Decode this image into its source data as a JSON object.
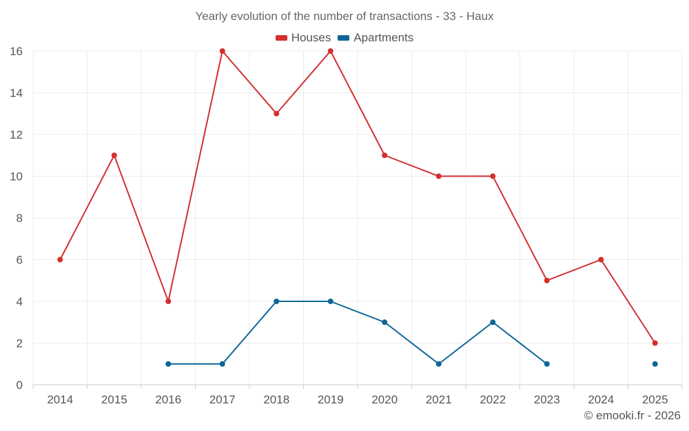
{
  "chart_data": {
    "type": "line",
    "title": "Yearly evolution of the number of transactions - 33 - Haux",
    "xlabel": "",
    "ylabel": "",
    "categories": [
      "2014",
      "2015",
      "2016",
      "2017",
      "2018",
      "2019",
      "2020",
      "2021",
      "2022",
      "2023",
      "2024",
      "2025"
    ],
    "ylim": [
      0,
      16
    ],
    "yticks": [
      0,
      2,
      4,
      6,
      8,
      10,
      12,
      14,
      16
    ],
    "grid": true,
    "legend_position": "top-center",
    "series": [
      {
        "name": "Houses",
        "color": "#d32f2f",
        "values": [
          6,
          11,
          4,
          16,
          13,
          16,
          11,
          10,
          10,
          5,
          6,
          2
        ]
      },
      {
        "name": "Apartments",
        "color": "#0d6697",
        "values": [
          null,
          null,
          1,
          1,
          4,
          4,
          3,
          1,
          3,
          1,
          null,
          1
        ]
      }
    ]
  },
  "footer": {
    "credit": "© emooki.fr - 2026"
  }
}
